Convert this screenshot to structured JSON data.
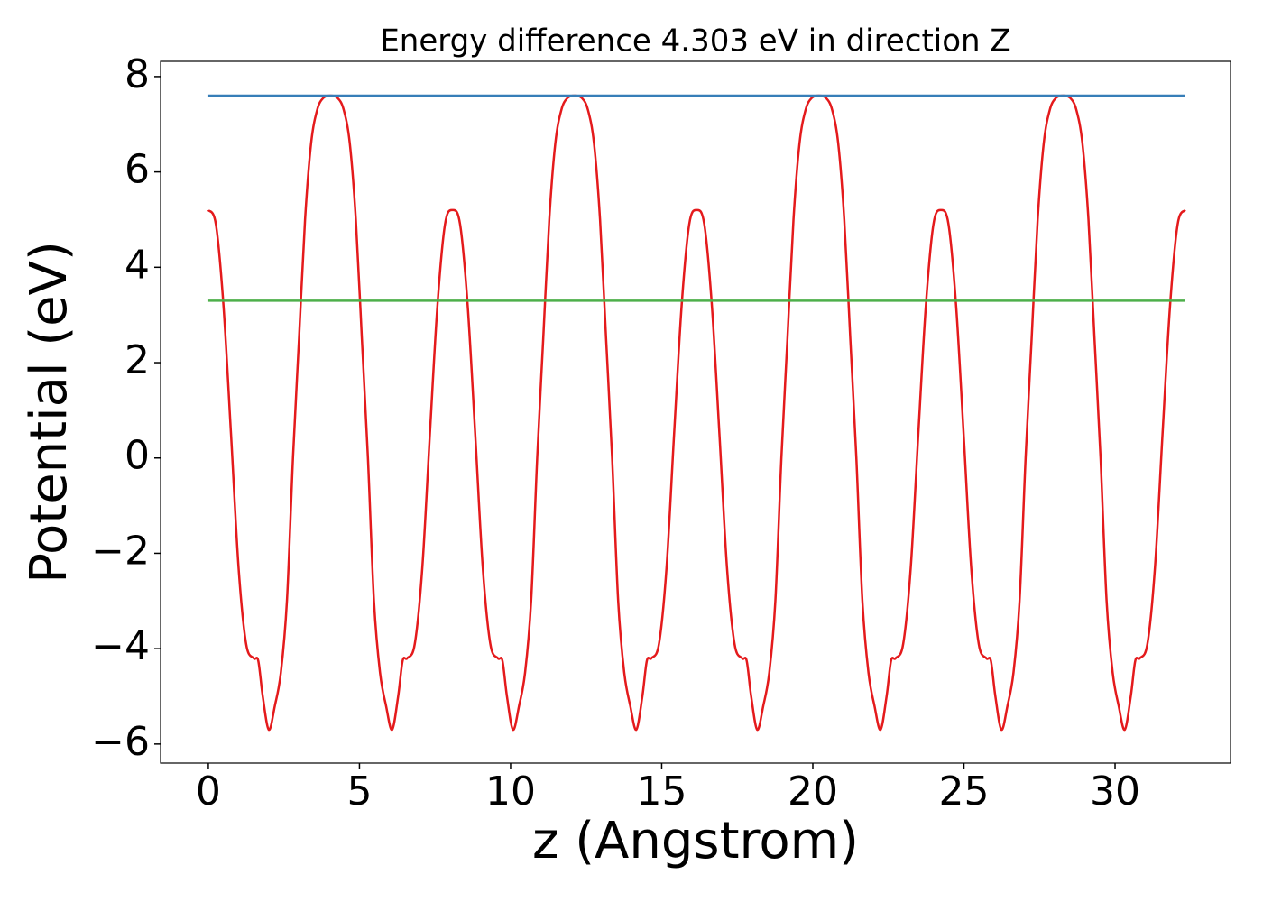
{
  "chart_data": {
    "type": "line",
    "title": "Energy difference 4.303 eV in direction Z",
    "x_label": "z (Angstrom)",
    "y_label": "Potential (eV)",
    "xlim": [
      -1.58,
      33.82
    ],
    "ylim": [
      -6.4,
      8.32
    ],
    "xticks": [
      0,
      5,
      10,
      15,
      20,
      25,
      30
    ],
    "yticks": [
      {
        "value": -6,
        "label": "−6"
      },
      {
        "value": -4,
        "label": "−4"
      },
      {
        "value": -2,
        "label": "−2"
      },
      0,
      2,
      4,
      6,
      8
    ],
    "series": [
      {
        "color": "#e41a1c",
        "x": [
          0,
          0.25,
          0.5,
          0.75,
          1,
          1.25,
          1.5,
          1.65,
          1.8,
          2,
          2.2,
          2.4,
          2.6,
          2.8,
          3,
          3.2,
          3.4,
          3.6,
          3.8,
          4.04,
          4.28,
          4.48,
          4.68,
          4.88,
          5.08,
          5.28,
          5.48,
          5.68,
          5.88,
          6.08,
          6.28,
          6.43,
          6.58,
          6.83,
          7.08,
          7.33,
          7.58,
          7.83,
          8.08,
          8.33,
          8.58,
          8.83,
          9.08,
          9.33,
          9.58,
          9.73,
          9.88,
          10.08,
          10.28,
          10.48,
          10.68,
          10.88,
          11.08,
          11.28,
          11.48,
          11.68,
          11.88,
          12.12,
          12.36,
          12.56,
          12.76,
          12.96,
          13.16,
          13.36,
          13.56,
          13.76,
          13.96,
          14.16,
          14.36,
          14.51,
          14.66,
          14.91,
          15.16,
          15.41,
          15.66,
          15.91,
          16.16,
          16.41,
          16.66,
          16.91,
          17.16,
          17.41,
          17.66,
          17.81,
          17.96,
          18.16,
          18.36,
          18.56,
          18.76,
          18.96,
          19.16,
          19.36,
          19.56,
          19.76,
          19.96,
          20.2,
          20.44,
          20.64,
          20.84,
          21.04,
          21.24,
          21.44,
          21.64,
          21.84,
          22.04,
          22.24,
          22.44,
          22.59,
          22.74,
          22.99,
          23.24,
          23.49,
          23.74,
          23.99,
          24.24,
          24.49,
          24.74,
          24.99,
          25.24,
          25.49,
          25.74,
          25.89,
          26.04,
          26.24,
          26.44,
          26.64,
          26.84,
          27.04,
          27.24,
          27.44,
          27.64,
          27.84,
          28.04,
          28.28,
          28.52,
          28.72,
          28.92,
          29.12,
          29.32,
          29.52,
          29.72,
          29.92,
          30.12,
          30.32,
          30.52,
          30.67,
          30.82,
          31.07,
          31.32,
          31.57,
          31.82,
          32.07,
          32.32
        ],
        "values": [
          5.2,
          4.9,
          3.2,
          0.5,
          -2.3,
          -3.9,
          -4.2,
          -4.25,
          -5.0,
          -5.7,
          -5.2,
          -4.5,
          -3.0,
          0.0,
          2.5,
          5.0,
          6.6,
          7.3,
          7.55,
          7.6,
          7.55,
          7.3,
          6.6,
          5.0,
          2.5,
          0.0,
          -3.0,
          -4.5,
          -5.2,
          -5.7,
          -5.0,
          -4.25,
          -4.2,
          -3.9,
          -2.3,
          0.5,
          3.2,
          4.9,
          5.2,
          4.9,
          3.2,
          0.5,
          -2.3,
          -3.9,
          -4.2,
          -4.25,
          -5.0,
          -5.7,
          -5.2,
          -4.5,
          -3.0,
          0.0,
          2.5,
          5.0,
          6.6,
          7.3,
          7.55,
          7.6,
          7.55,
          7.3,
          6.6,
          5.0,
          2.5,
          0.0,
          -3.0,
          -4.5,
          -5.2,
          -5.7,
          -5.0,
          -4.25,
          -4.2,
          -3.9,
          -2.3,
          0.5,
          3.2,
          4.9,
          5.2,
          4.9,
          3.2,
          0.5,
          -2.3,
          -3.9,
          -4.2,
          -4.25,
          -5.0,
          -5.7,
          -5.2,
          -4.5,
          -3.0,
          0.0,
          2.5,
          5.0,
          6.6,
          7.3,
          7.55,
          7.6,
          7.55,
          7.3,
          6.6,
          5.0,
          2.5,
          0.0,
          -3.0,
          -4.5,
          -5.2,
          -5.7,
          -5.0,
          -4.25,
          -4.2,
          -3.9,
          -2.3,
          0.5,
          3.2,
          4.9,
          5.2,
          4.9,
          3.2,
          0.5,
          -2.3,
          -3.9,
          -4.2,
          -4.25,
          -5.0,
          -5.7,
          -5.2,
          -4.5,
          -3.0,
          0.0,
          2.5,
          5.0,
          6.6,
          7.3,
          7.55,
          7.6,
          7.55,
          7.3,
          6.6,
          5.0,
          2.5,
          0.0,
          -3.0,
          -4.5,
          -5.2,
          -5.7,
          -5.0,
          -4.25,
          -4.2,
          -3.9,
          -2.3,
          0.5,
          3.2,
          4.9,
          5.2
        ]
      },
      {
        "color": "#377eb8",
        "x": [
          0,
          32.32
        ],
        "values": [
          7.6,
          7.6
        ]
      },
      {
        "color": "#4daf4a",
        "x": [
          0,
          32.32
        ],
        "values": [
          3.3,
          3.3
        ]
      }
    ]
  }
}
